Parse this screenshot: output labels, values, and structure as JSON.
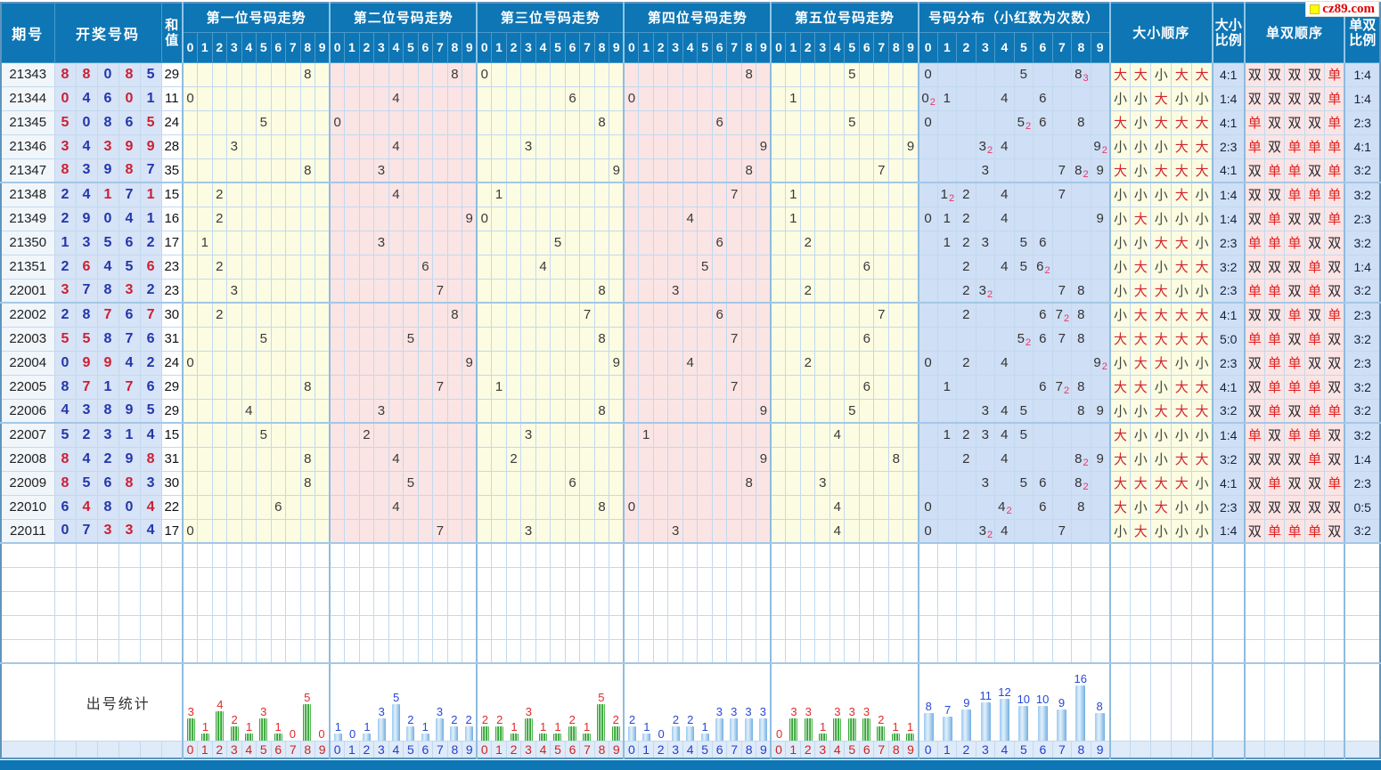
{
  "watermark": {
    "logo_text": "cz89.com"
  },
  "colors": {
    "header_blue": "#0e76b4",
    "repeat_red": "#cc1f33",
    "digit_navy": "#2336ab",
    "yellow_band": "#fcfce2",
    "pink_band": "#fbe4e4",
    "dist_blue": "#cfdff5",
    "bar_green": "#52b852",
    "bar_blue": "#74afe0"
  },
  "header": {
    "period": "期号",
    "numbers": "开奖号码",
    "sum_lines": [
      "和",
      "值"
    ],
    "groups": [
      "第一位号码走势",
      "第二位号码走势",
      "第三位号码走势",
      "第四位号码走势",
      "第五位号码走势"
    ],
    "dist": "号码分布（小红数为次数）",
    "digit_cols": [
      "0",
      "1",
      "2",
      "3",
      "4",
      "5",
      "6",
      "7",
      "8",
      "9"
    ],
    "bs_order": "大小顺序",
    "bs_ratio_lines": [
      "大小",
      "比例"
    ],
    "oe_order": "单双顺序",
    "oe_ratio_lines": [
      "单双",
      "比例"
    ]
  },
  "stats_label": "出号统计",
  "empty_rows": 5,
  "rows": [
    {
      "period": "21343",
      "digits": [
        8,
        8,
        0,
        8,
        5
      ],
      "sum": 29,
      "bs": [
        "大",
        "大",
        "小",
        "大",
        "大"
      ],
      "bs_ratio": "4:1",
      "oe": [
        "双",
        "双",
        "双",
        "双",
        "单"
      ],
      "oe_ratio": "1:4",
      "dist": [
        {
          "d": 0,
          "c": 1
        },
        {
          "d": 5,
          "c": 1
        },
        {
          "d": 8,
          "c": 3
        }
      ]
    },
    {
      "period": "21344",
      "digits": [
        0,
        4,
        6,
        0,
        1
      ],
      "sum": 11,
      "bs": [
        "小",
        "小",
        "大",
        "小",
        "小"
      ],
      "bs_ratio": "1:4",
      "oe": [
        "双",
        "双",
        "双",
        "双",
        "单"
      ],
      "oe_ratio": "1:4",
      "dist": [
        {
          "d": 0,
          "c": 2
        },
        {
          "d": 1,
          "c": 1
        },
        {
          "d": 4,
          "c": 1
        },
        {
          "d": 6,
          "c": 1
        }
      ]
    },
    {
      "period": "21345",
      "digits": [
        5,
        0,
        8,
        6,
        5
      ],
      "sum": 24,
      "bs": [
        "大",
        "小",
        "大",
        "大",
        "大"
      ],
      "bs_ratio": "4:1",
      "oe": [
        "单",
        "双",
        "双",
        "双",
        "单"
      ],
      "oe_ratio": "2:3",
      "dist": [
        {
          "d": 0,
          "c": 1
        },
        {
          "d": 5,
          "c": 2
        },
        {
          "d": 6,
          "c": 1
        },
        {
          "d": 8,
          "c": 1
        }
      ]
    },
    {
      "period": "21346",
      "digits": [
        3,
        4,
        3,
        9,
        9
      ],
      "sum": 28,
      "bs": [
        "小",
        "小",
        "小",
        "大",
        "大"
      ],
      "bs_ratio": "2:3",
      "oe": [
        "单",
        "双",
        "单",
        "单",
        "单"
      ],
      "oe_ratio": "4:1",
      "dist": [
        {
          "d": 3,
          "c": 2
        },
        {
          "d": 4,
          "c": 1
        },
        {
          "d": 9,
          "c": 2
        }
      ]
    },
    {
      "period": "21347",
      "digits": [
        8,
        3,
        9,
        8,
        7
      ],
      "sum": 35,
      "bs": [
        "大",
        "小",
        "大",
        "大",
        "大"
      ],
      "bs_ratio": "4:1",
      "oe": [
        "双",
        "单",
        "单",
        "双",
        "单"
      ],
      "oe_ratio": "3:2",
      "dist": [
        {
          "d": 3,
          "c": 1
        },
        {
          "d": 7,
          "c": 1
        },
        {
          "d": 8,
          "c": 2
        },
        {
          "d": 9,
          "c": 1
        }
      ]
    },
    {
      "period": "21348",
      "digits": [
        2,
        4,
        1,
        7,
        1
      ],
      "sum": 15,
      "bs": [
        "小",
        "小",
        "小",
        "大",
        "小"
      ],
      "bs_ratio": "1:4",
      "oe": [
        "双",
        "双",
        "单",
        "单",
        "单"
      ],
      "oe_ratio": "3:2",
      "dist": [
        {
          "d": 1,
          "c": 2
        },
        {
          "d": 2,
          "c": 1
        },
        {
          "d": 4,
          "c": 1
        },
        {
          "d": 7,
          "c": 1
        }
      ]
    },
    {
      "period": "21349",
      "digits": [
        2,
        9,
        0,
        4,
        1
      ],
      "sum": 16,
      "bs": [
        "小",
        "大",
        "小",
        "小",
        "小"
      ],
      "bs_ratio": "1:4",
      "oe": [
        "双",
        "单",
        "双",
        "双",
        "单"
      ],
      "oe_ratio": "2:3",
      "dist": [
        {
          "d": 0,
          "c": 1
        },
        {
          "d": 1,
          "c": 1
        },
        {
          "d": 2,
          "c": 1
        },
        {
          "d": 4,
          "c": 1
        },
        {
          "d": 9,
          "c": 1
        }
      ]
    },
    {
      "period": "21350",
      "digits": [
        1,
        3,
        5,
        6,
        2
      ],
      "sum": 17,
      "bs": [
        "小",
        "小",
        "大",
        "大",
        "小"
      ],
      "bs_ratio": "2:3",
      "oe": [
        "单",
        "单",
        "单",
        "双",
        "双"
      ],
      "oe_ratio": "3:2",
      "dist": [
        {
          "d": 1,
          "c": 1
        },
        {
          "d": 2,
          "c": 1
        },
        {
          "d": 3,
          "c": 1
        },
        {
          "d": 5,
          "c": 1
        },
        {
          "d": 6,
          "c": 1
        }
      ]
    },
    {
      "period": "21351",
      "digits": [
        2,
        6,
        4,
        5,
        6
      ],
      "sum": 23,
      "bs": [
        "小",
        "大",
        "小",
        "大",
        "大"
      ],
      "bs_ratio": "3:2",
      "oe": [
        "双",
        "双",
        "双",
        "单",
        "双"
      ],
      "oe_ratio": "1:4",
      "dist": [
        {
          "d": 2,
          "c": 1
        },
        {
          "d": 4,
          "c": 1
        },
        {
          "d": 5,
          "c": 1
        },
        {
          "d": 6,
          "c": 2
        }
      ]
    },
    {
      "period": "22001",
      "digits": [
        3,
        7,
        8,
        3,
        2
      ],
      "sum": 23,
      "bs": [
        "小",
        "大",
        "大",
        "小",
        "小"
      ],
      "bs_ratio": "2:3",
      "oe": [
        "单",
        "单",
        "双",
        "单",
        "双"
      ],
      "oe_ratio": "3:2",
      "dist": [
        {
          "d": 2,
          "c": 1
        },
        {
          "d": 3,
          "c": 2
        },
        {
          "d": 7,
          "c": 1
        },
        {
          "d": 8,
          "c": 1
        }
      ]
    },
    {
      "period": "22002",
      "digits": [
        2,
        8,
        7,
        6,
        7
      ],
      "sum": 30,
      "bs": [
        "小",
        "大",
        "大",
        "大",
        "大"
      ],
      "bs_ratio": "4:1",
      "oe": [
        "双",
        "双",
        "单",
        "双",
        "单"
      ],
      "oe_ratio": "2:3",
      "dist": [
        {
          "d": 2,
          "c": 1
        },
        {
          "d": 6,
          "c": 1
        },
        {
          "d": 7,
          "c": 2
        },
        {
          "d": 8,
          "c": 1
        }
      ]
    },
    {
      "period": "22003",
      "digits": [
        5,
        5,
        8,
        7,
        6
      ],
      "sum": 31,
      "bs": [
        "大",
        "大",
        "大",
        "大",
        "大"
      ],
      "bs_ratio": "5:0",
      "oe": [
        "单",
        "单",
        "双",
        "单",
        "双"
      ],
      "oe_ratio": "3:2",
      "dist": [
        {
          "d": 5,
          "c": 2
        },
        {
          "d": 6,
          "c": 1
        },
        {
          "d": 7,
          "c": 1
        },
        {
          "d": 8,
          "c": 1
        }
      ]
    },
    {
      "period": "22004",
      "digits": [
        0,
        9,
        9,
        4,
        2
      ],
      "sum": 24,
      "bs": [
        "小",
        "大",
        "大",
        "小",
        "小"
      ],
      "bs_ratio": "2:3",
      "oe": [
        "双",
        "单",
        "单",
        "双",
        "双"
      ],
      "oe_ratio": "2:3",
      "dist": [
        {
          "d": 0,
          "c": 1
        },
        {
          "d": 2,
          "c": 1
        },
        {
          "d": 4,
          "c": 1
        },
        {
          "d": 9,
          "c": 2
        }
      ]
    },
    {
      "period": "22005",
      "digits": [
        8,
        7,
        1,
        7,
        6
      ],
      "sum": 29,
      "bs": [
        "大",
        "大",
        "小",
        "大",
        "大"
      ],
      "bs_ratio": "4:1",
      "oe": [
        "双",
        "单",
        "单",
        "单",
        "双"
      ],
      "oe_ratio": "3:2",
      "dist": [
        {
          "d": 1,
          "c": 1
        },
        {
          "d": 6,
          "c": 1
        },
        {
          "d": 7,
          "c": 2
        },
        {
          "d": 8,
          "c": 1
        }
      ]
    },
    {
      "period": "22006",
      "digits": [
        4,
        3,
        8,
        9,
        5
      ],
      "sum": 29,
      "bs": [
        "小",
        "小",
        "大",
        "大",
        "大"
      ],
      "bs_ratio": "3:2",
      "oe": [
        "双",
        "单",
        "双",
        "单",
        "单"
      ],
      "oe_ratio": "3:2",
      "dist": [
        {
          "d": 3,
          "c": 1
        },
        {
          "d": 4,
          "c": 1
        },
        {
          "d": 5,
          "c": 1
        },
        {
          "d": 8,
          "c": 1
        },
        {
          "d": 9,
          "c": 1
        }
      ]
    },
    {
      "period": "22007",
      "digits": [
        5,
        2,
        3,
        1,
        4
      ],
      "sum": 15,
      "bs": [
        "大",
        "小",
        "小",
        "小",
        "小"
      ],
      "bs_ratio": "1:4",
      "oe": [
        "单",
        "双",
        "单",
        "单",
        "双"
      ],
      "oe_ratio": "3:2",
      "dist": [
        {
          "d": 1,
          "c": 1
        },
        {
          "d": 2,
          "c": 1
        },
        {
          "d": 3,
          "c": 1
        },
        {
          "d": 4,
          "c": 1
        },
        {
          "d": 5,
          "c": 1
        }
      ]
    },
    {
      "period": "22008",
      "digits": [
        8,
        4,
        2,
        9,
        8
      ],
      "sum": 31,
      "bs": [
        "大",
        "小",
        "小",
        "大",
        "大"
      ],
      "bs_ratio": "3:2",
      "oe": [
        "双",
        "双",
        "双",
        "单",
        "双"
      ],
      "oe_ratio": "1:4",
      "dist": [
        {
          "d": 2,
          "c": 1
        },
        {
          "d": 4,
          "c": 1
        },
        {
          "d": 8,
          "c": 2
        },
        {
          "d": 9,
          "c": 1
        }
      ]
    },
    {
      "period": "22009",
      "digits": [
        8,
        5,
        6,
        8,
        3
      ],
      "sum": 30,
      "bs": [
        "大",
        "大",
        "大",
        "大",
        "小"
      ],
      "bs_ratio": "4:1",
      "oe": [
        "双",
        "单",
        "双",
        "双",
        "单"
      ],
      "oe_ratio": "2:3",
      "dist": [
        {
          "d": 3,
          "c": 1
        },
        {
          "d": 5,
          "c": 1
        },
        {
          "d": 6,
          "c": 1
        },
        {
          "d": 8,
          "c": 2
        }
      ]
    },
    {
      "period": "22010",
      "digits": [
        6,
        4,
        8,
        0,
        4
      ],
      "sum": 22,
      "bs": [
        "大",
        "小",
        "大",
        "小",
        "小"
      ],
      "bs_ratio": "2:3",
      "oe": [
        "双",
        "双",
        "双",
        "双",
        "双"
      ],
      "oe_ratio": "0:5",
      "dist": [
        {
          "d": 0,
          "c": 1
        },
        {
          "d": 4,
          "c": 2
        },
        {
          "d": 6,
          "c": 1
        },
        {
          "d": 8,
          "c": 1
        }
      ]
    },
    {
      "period": "22011",
      "digits": [
        0,
        7,
        3,
        3,
        4
      ],
      "sum": 17,
      "bs": [
        "小",
        "大",
        "小",
        "小",
        "小"
      ],
      "bs_ratio": "1:4",
      "oe": [
        "双",
        "单",
        "单",
        "单",
        "双"
      ],
      "oe_ratio": "3:2",
      "dist": [
        {
          "d": 0,
          "c": 1
        },
        {
          "d": 3,
          "c": 2
        },
        {
          "d": 4,
          "c": 1
        },
        {
          "d": 7,
          "c": 1
        }
      ]
    }
  ],
  "chart_data": {
    "type": "bar",
    "title": "出号统计",
    "categories": [
      "0",
      "1",
      "2",
      "3",
      "4",
      "5",
      "6",
      "7",
      "8",
      "9"
    ],
    "series": [
      {
        "name": "第一位号码",
        "values": [
          3,
          1,
          4,
          2,
          1,
          3,
          1,
          0,
          5,
          0
        ]
      },
      {
        "name": "第二位号码",
        "values": [
          1,
          0,
          1,
          3,
          5,
          2,
          1,
          3,
          2,
          2
        ]
      },
      {
        "name": "第三位号码",
        "values": [
          2,
          2,
          1,
          3,
          1,
          1,
          2,
          1,
          5,
          2
        ]
      },
      {
        "name": "第四位号码",
        "values": [
          2,
          1,
          0,
          2,
          2,
          1,
          3,
          3,
          3,
          3
        ]
      },
      {
        "name": "第五位号码",
        "values": [
          0,
          3,
          3,
          1,
          3,
          3,
          3,
          2,
          1,
          1
        ]
      },
      {
        "name": "号码分布",
        "values": [
          8,
          7,
          9,
          11,
          12,
          10,
          10,
          9,
          16,
          8
        ]
      }
    ],
    "ylim": [
      0,
      16
    ],
    "grid": false,
    "legend": "none"
  }
}
